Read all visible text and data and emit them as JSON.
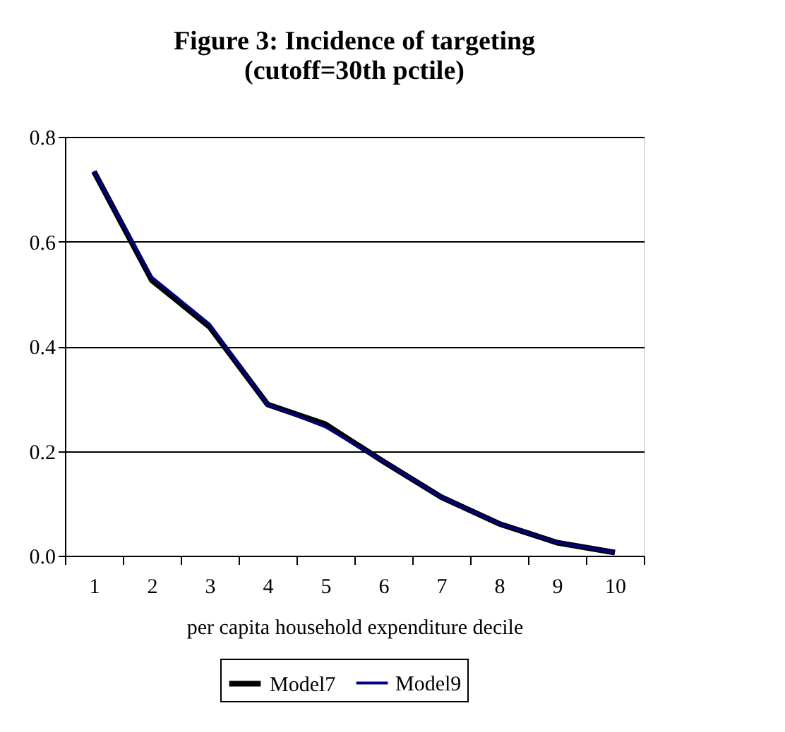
{
  "chart_data": {
    "type": "line",
    "title": "Figure 3: Incidence of targeting\n(cutoff=30th pctile)",
    "xlabel": "per capita household expenditure decile",
    "categories": [
      "1",
      "2",
      "3",
      "4",
      "5",
      "6",
      "7",
      "8",
      "9",
      "10"
    ],
    "series": [
      {
        "name": "Model7",
        "color": "#000000",
        "values": [
          0.734,
          0.526,
          0.437,
          0.289,
          0.251,
          0.18,
          0.112,
          0.061,
          0.025,
          0.006
        ]
      },
      {
        "name": "Model9",
        "color": "#000080",
        "values": [
          0.734,
          0.532,
          0.442,
          0.289,
          0.246,
          0.18,
          0.112,
          0.061,
          0.025,
          0.006
        ]
      }
    ],
    "ylim": [
      0,
      0.8
    ],
    "yticks": [
      {
        "value": 0,
        "label": "0.0"
      },
      {
        "value": 0.2,
        "label": "0.2"
      },
      {
        "value": 0.4,
        "label": "0.4"
      },
      {
        "value": 0.6,
        "label": "0.6"
      },
      {
        "value": 0.8,
        "label": "0.8"
      }
    ],
    "grid": "y",
    "legend": "bottom",
    "marker": "none",
    "line_style": "solid"
  }
}
